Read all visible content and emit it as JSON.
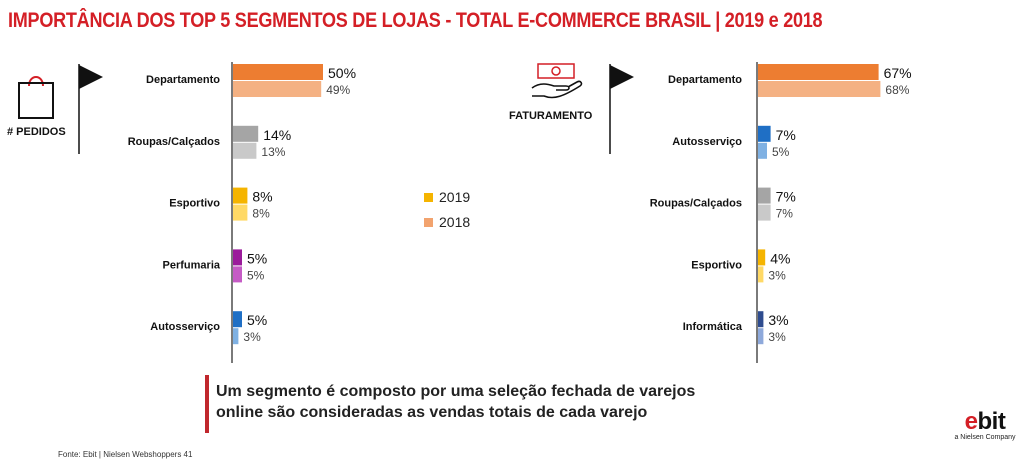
{
  "title": "IMPORTÂNCIA DOS TOP 5 SEGMENTOS DE LOJAS - TOTAL E-COMMERCE BRASIL | 2019 e 2018",
  "legend": {
    "items": [
      {
        "label": "2019",
        "color": "#f5b400"
      },
      {
        "label": "2018",
        "color": "#f2a36e"
      }
    ]
  },
  "note": {
    "line1": "Um segmento é composto por uma seleção fechada de varejos",
    "line2": "online são consideradas as vendas totais de cada varejo"
  },
  "source": "Fonte: Ebit | Nielsen Webshoppers 41",
  "logo": {
    "brand_e": "e",
    "brand_rest": "bit",
    "sub": "a Nielsen Company"
  },
  "chart_data": [
    {
      "type": "bar",
      "panel_label": "# PEDIDOS",
      "icon": "shopping-bag-icon",
      "categories": [
        "Departamento",
        "Roupas/Calçados",
        "Esportivo",
        "Perfumaria",
        "Autosserviço"
      ],
      "series": [
        {
          "name": "2019",
          "values": [
            50,
            14,
            8,
            5,
            5
          ],
          "labels": [
            "50%",
            "14%",
            "8%",
            "5%",
            "5%"
          ]
        },
        {
          "name": "2018",
          "values": [
            49,
            13,
            8,
            5,
            3
          ],
          "labels": [
            "49%",
            "13%",
            "8%",
            "5%",
            "3%"
          ]
        }
      ],
      "colors_2019": [
        "#ed7d31",
        "#a5a5a5",
        "#f5b400",
        "#9b1b9b",
        "#1f6fc5"
      ],
      "colors_2018": [
        "#f4b183",
        "#c9c9c9",
        "#ffd966",
        "#c55bc5",
        "#7fb1e3"
      ],
      "xlim": [
        0,
        100
      ]
    },
    {
      "type": "bar",
      "panel_label": "FATURAMENTO",
      "icon": "hand-money-icon",
      "categories": [
        "Departamento",
        "Autosserviço",
        "Roupas/Calçados",
        "Esportivo",
        "Informática"
      ],
      "series": [
        {
          "name": "2019",
          "values": [
            67,
            7,
            7,
            4,
            3
          ],
          "labels": [
            "67%",
            "7%",
            "7%",
            "4%",
            "3%"
          ]
        },
        {
          "name": "2018",
          "values": [
            68,
            5,
            7,
            3,
            3
          ],
          "labels": [
            "68%",
            "5%",
            "7%",
            "3%",
            "3%"
          ]
        }
      ],
      "colors_2019": [
        "#ed7d31",
        "#1f6fc5",
        "#a5a5a5",
        "#f5b400",
        "#2e4c8f"
      ],
      "colors_2018": [
        "#f4b183",
        "#7fb1e3",
        "#c9c9c9",
        "#ffd966",
        "#8ea9db"
      ],
      "xlim": [
        0,
        100
      ]
    }
  ]
}
